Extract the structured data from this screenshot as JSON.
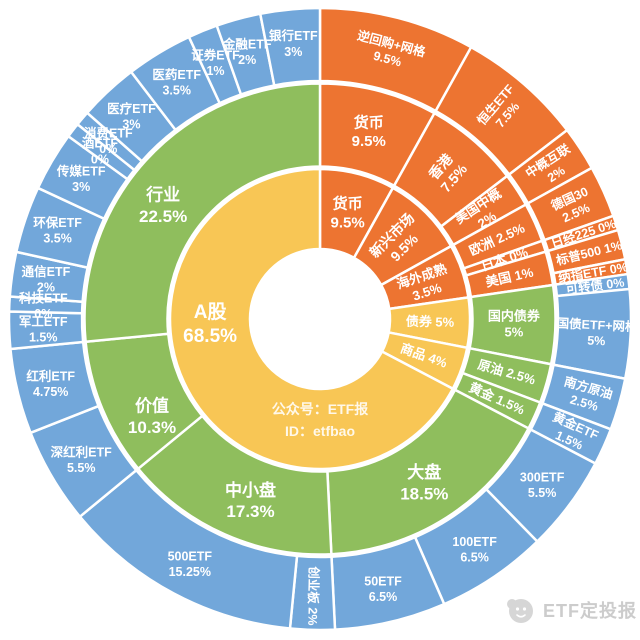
{
  "chart_data": {
    "type": "sunburst",
    "unit": "%",
    "rings": 3,
    "start_angle_deg": 0,
    "direction": "clockwise",
    "colors": {
      "orange": "#ED7431",
      "yellow": "#F8C655",
      "green": "#8FBE5D",
      "blue": "#72A7DA",
      "label": "#FFFFFF",
      "background": "#FFFFFF"
    },
    "tree": [
      {
        "name": "货币",
        "pct": "9.5%",
        "value": 9.5,
        "branch": "orange",
        "children": [
          {
            "name": "货币",
            "pct": "9.5%",
            "value": 9.5,
            "children": [
              {
                "name": "逆回购+网格",
                "pct": "9.5%",
                "value": 9.5
              }
            ]
          }
        ]
      },
      {
        "name": "新兴市场",
        "pct": "9.5%",
        "value": 9.5,
        "branch": "orange",
        "children": [
          {
            "name": "香港",
            "pct": "7.5%",
            "value": 7.5,
            "children": [
              {
                "name": "恒生ETF",
                "pct": "7.5%",
                "value": 7.5
              }
            ]
          },
          {
            "name": "美国中概",
            "pct": "2%",
            "value": 2,
            "children": [
              {
                "name": "中概互联",
                "pct": "2%",
                "value": 2
              }
            ]
          }
        ]
      },
      {
        "name": "海外成熟",
        "pct": "3.5%",
        "value": 3.5,
        "branch": "orange",
        "children": [
          {
            "name": "欧洲",
            "pct": "2.5%",
            "value": 2.5,
            "children": [
              {
                "name": "德国30",
                "pct": "2.5%",
                "value": 2.5
              }
            ]
          },
          {
            "name": "日本",
            "pct": "0%",
            "value": 0,
            "children": [
              {
                "name": "日经225",
                "pct": "0%",
                "value": 0
              }
            ]
          },
          {
            "name": "美国",
            "pct": "1%",
            "value": 1,
            "children": [
              {
                "name": "标普500",
                "pct": "1%",
                "value": 1
              },
              {
                "name": "纳指ETF",
                "pct": "0%",
                "value": 0
              }
            ]
          }
        ]
      },
      {
        "name": "债券",
        "pct": "5%",
        "value": 5,
        "branch": "main",
        "children": [
          {
            "name": "国内债券",
            "pct": "5%",
            "value": 5,
            "children": [
              {
                "name": "可转债",
                "pct": "0%",
                "value": 0
              },
              {
                "name": "国债ETF+网格",
                "pct": "5%",
                "value": 5
              }
            ]
          }
        ]
      },
      {
        "name": "商品",
        "pct": "4%",
        "value": 4,
        "branch": "main",
        "children": [
          {
            "name": "原油",
            "pct": "2.5%",
            "value": 2.5,
            "children": [
              {
                "name": "南方原油",
                "pct": "2.5%",
                "value": 2.5
              }
            ]
          },
          {
            "name": "黄金",
            "pct": "1.5%",
            "value": 1.5,
            "children": [
              {
                "name": "黄金ETF",
                "pct": "1.5%",
                "value": 1.5
              }
            ]
          }
        ]
      },
      {
        "name": "A股",
        "pct": "68.5%",
        "value": 68.5,
        "branch": "main",
        "children": [
          {
            "name": "大盘",
            "pct": "18.5%",
            "value": 18.5,
            "children": [
              {
                "name": "300ETF",
                "pct": "5.5%",
                "value": 5.5
              },
              {
                "name": "100ETF",
                "pct": "6.5%",
                "value": 6.5
              },
              {
                "name": "50ETF",
                "pct": "6.5%",
                "value": 6.5
              }
            ]
          },
          {
            "name": "中小盘",
            "pct": "17.3%",
            "value": 17.3,
            "children": [
              {
                "name": "创业板",
                "pct": "2%",
                "value": 2
              },
              {
                "name": "500ETF",
                "pct": "15.25%",
                "value": 15.25
              }
            ]
          },
          {
            "name": "价值",
            "pct": "10.3%",
            "value": 10.3,
            "children": [
              {
                "name": "深红利ETF",
                "pct": "5.5%",
                "value": 5.5
              },
              {
                "name": "红利ETF",
                "pct": "4.75%",
                "value": 4.75
              }
            ]
          },
          {
            "name": "行业",
            "pct": "22.5%",
            "value": 22.5,
            "children": [
              {
                "name": "军工ETF",
                "pct": "1.5%",
                "value": 1.5
              },
              {
                "name": "科技ETF",
                "pct": "0%",
                "value": 0
              },
              {
                "name": "通信ETF",
                "pct": "2%",
                "value": 2
              },
              {
                "name": "环保ETF",
                "pct": "3.5%",
                "value": 3.5
              },
              {
                "name": "传媒ETF",
                "pct": "3%",
                "value": 3
              },
              {
                "name": "酒ETF",
                "pct": "0%",
                "value": 0
              },
              {
                "name": "消费ETF",
                "pct": "0%",
                "value": 0
              },
              {
                "name": "医疗ETF",
                "pct": "3%",
                "value": 3
              },
              {
                "name": "医药ETF",
                "pct": "3.5%",
                "value": 3.5
              },
              {
                "name": "证券ETF",
                "pct": "1%",
                "value": 1
              },
              {
                "name": "金融ETF",
                "pct": "2%",
                "value": 2
              },
              {
                "name": "银行ETF",
                "pct": "3%",
                "value": 3
              }
            ]
          }
        ]
      }
    ]
  },
  "center_note": {
    "line1": "公众号：ETF报",
    "line2": "ID：etfbao"
  },
  "watermark": {
    "text": "ETF定投报"
  }
}
